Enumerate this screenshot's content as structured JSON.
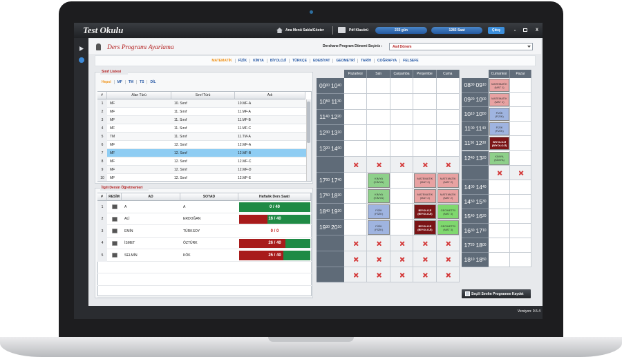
{
  "app": {
    "title": "Test Okulu",
    "toolbar": {
      "menu": "Ana Menü Sakla/Göster",
      "pdf": "Pdf Klasörü",
      "days": "233 gün",
      "hours": "1283 Saat",
      "exit": "Çıkış",
      "minimize": "-",
      "close": "X"
    }
  },
  "page": {
    "title": "Ders Programı Ayarlama",
    "term_label": "Dershane Program Dönemi Seçiniz :",
    "term_value": "Asıl Dönem"
  },
  "subjects": {
    "items": [
      "MATEMATİK",
      "FİZİK",
      "KİMYA",
      "BİYOLOJİ",
      "TÜRKÇE",
      "EDEBİYAT",
      "GEOMETRİ",
      "TARİH",
      "COĞRAFYA",
      "FELSEFE"
    ],
    "active": 0
  },
  "class_list": {
    "title": "Sınıf Listesi",
    "filters": [
      "Hepsi",
      "MF",
      "TM",
      "TS",
      "DİL"
    ],
    "active_filter": 0,
    "columns": [
      "#",
      "Alan Türü",
      "Sınıf Türü",
      "Adı"
    ],
    "rows": [
      [
        1,
        "MF",
        "10. Sınıf",
        "10.MF-A"
      ],
      [
        2,
        "MF",
        "11. Sınıf",
        "11.MF-A"
      ],
      [
        3,
        "MF",
        "11. Sınıf",
        "11.MF-B"
      ],
      [
        4,
        "MF",
        "11. Sınıf",
        "11.MF-C"
      ],
      [
        5,
        "TM",
        "11. Sınıf",
        "11.TM-A"
      ],
      [
        6,
        "MF",
        "12. Sınıf",
        "12.MF-A"
      ],
      [
        7,
        "MF",
        "12. Sınıf",
        "12.MF-B"
      ],
      [
        8,
        "MF",
        "12. Sınıf",
        "12.MF-C"
      ],
      [
        9,
        "MF",
        "12. Sınıf",
        "12.MF-D"
      ],
      [
        10,
        "MF",
        "12. Sınıf",
        "12.MF-E"
      ]
    ],
    "selected": 6
  },
  "teachers": {
    "title": "İlgili Dersin Öğretmenleri",
    "columns": [
      "#",
      "RESİM",
      "AD",
      "SOYAD",
      "Haftalık Ders Saati"
    ],
    "rows": [
      {
        "no": 1,
        "first": "A",
        "last": "A",
        "hours": 0,
        "max": 40,
        "label": "0 / 40"
      },
      {
        "no": 2,
        "first": "ALİ",
        "last": "ERDOĞAN",
        "hours": 16,
        "max": 40,
        "label": "16 / 40"
      },
      {
        "no": 3,
        "first": "EMİN",
        "last": "TÜRKSOY",
        "hours": 0,
        "max": 0,
        "label": "0 / 0"
      },
      {
        "no": 4,
        "first": "İSMET",
        "last": "ÖZTÜRK",
        "hours": 26,
        "max": 40,
        "label": "26 / 40"
      },
      {
        "no": 5,
        "first": "SELMİN",
        "last": "KÖK",
        "hours": 25,
        "max": 40,
        "label": "25 / 40"
      }
    ]
  },
  "weekday": {
    "days": [
      "Pazartesi",
      "Salı",
      "Çarşamba",
      "Perşembe",
      "Cuma"
    ],
    "slots": [
      {
        "time": [
          "09",
          "00",
          "10",
          "40"
        ],
        "blocked": false,
        "cells": [
          null,
          null,
          null,
          null,
          null
        ]
      },
      {
        "time": [
          "10",
          "50",
          "11",
          "30"
        ],
        "blocked": false,
        "cells": [
          null,
          null,
          null,
          null,
          null
        ]
      },
      {
        "time": [
          "11",
          "40",
          "12",
          "20"
        ],
        "blocked": false,
        "cells": [
          null,
          null,
          null,
          null,
          null
        ]
      },
      {
        "time": [
          "12",
          "30",
          "13",
          "10"
        ],
        "blocked": false,
        "cells": [
          null,
          null,
          null,
          null,
          null
        ]
      },
      {
        "time": [
          "13",
          "20",
          "14",
          "00"
        ],
        "blocked": false,
        "cells": [
          null,
          null,
          null,
          null,
          null
        ]
      },
      {
        "time": null,
        "blocked": true,
        "cells": [
          null,
          null,
          null,
          null,
          null
        ]
      },
      {
        "time": [
          "17",
          "00",
          "17",
          "40"
        ],
        "blocked": false,
        "cells": [
          null,
          {
            "subject": "KİMYA",
            "group": "(KİMYA)",
            "color": "#8ed08a"
          },
          null,
          {
            "subject": "MATEMATİK",
            "group": "(MAT 2)",
            "color": "#e8a2a2"
          },
          {
            "subject": "MATEMATİK",
            "group": "(MAT 2)",
            "color": "#e8a2a2"
          }
        ]
      },
      {
        "time": [
          "17",
          "50",
          "18",
          "30"
        ],
        "blocked": false,
        "cells": [
          null,
          {
            "subject": "KİMYA",
            "group": "(KİMYA)",
            "color": "#8ed08a"
          },
          null,
          {
            "subject": "MATEMATİK",
            "group": "(MAT 2)",
            "color": "#e8a2a2"
          },
          {
            "subject": "MATEMATİK",
            "group": "(MAT 2)",
            "color": "#e8a2a2"
          }
        ]
      },
      {
        "time": [
          "18",
          "40",
          "19",
          "20"
        ],
        "blocked": false,
        "cells": [
          null,
          {
            "subject": "FİZİK",
            "group": "(FİZİK)",
            "color": "#9fb4e0"
          },
          null,
          {
            "subject": "BİYOLOJİ",
            "group": "(BİYOLOJİ)",
            "color": "#7a1416"
          },
          {
            "subject": "GEOMETRİ",
            "group": "(MAT 3)",
            "color": "#7fd86e"
          }
        ]
      },
      {
        "time": [
          "19",
          "30",
          "20",
          "10"
        ],
        "blocked": false,
        "cells": [
          null,
          {
            "subject": "FİZİK",
            "group": "(FİZİK)",
            "color": "#9fb4e0"
          },
          null,
          {
            "subject": "BİYOLOJİ",
            "group": "(BİYOLOJİ)",
            "color": "#7a1416"
          },
          {
            "subject": "GEOMETRİ",
            "group": "(MAT 3)",
            "color": "#7fd86e"
          }
        ]
      },
      {
        "time": null,
        "blocked": true,
        "cells": [
          null,
          null,
          null,
          null,
          null
        ]
      },
      {
        "time": null,
        "blocked": true,
        "cells": [
          null,
          null,
          null,
          null,
          null
        ]
      },
      {
        "time": null,
        "blocked": true,
        "cells": [
          null,
          null,
          null,
          null,
          null
        ]
      }
    ]
  },
  "weekend": {
    "days": [
      "Cumartesi",
      "Pazar"
    ],
    "slots": [
      {
        "time": [
          "08",
          "30",
          "09",
          "10"
        ],
        "blocked": false,
        "cells": [
          {
            "subject": "MATEMATİK",
            "group": "(MAT 1)",
            "color": "#e8a2a2"
          },
          null
        ]
      },
      {
        "time": [
          "09",
          "20",
          "10",
          "00"
        ],
        "blocked": false,
        "cells": [
          {
            "subject": "MATEMATİK",
            "group": "(MAT 1)",
            "color": "#e8a2a2"
          },
          null
        ]
      },
      {
        "time": [
          "10",
          "10",
          "10",
          "50"
        ],
        "blocked": false,
        "cells": [
          {
            "subject": "FİZİK",
            "group": "(FİZİK)",
            "color": "#9fb4e0"
          },
          null
        ]
      },
      {
        "time": [
          "11",
          "00",
          "11",
          "40"
        ],
        "blocked": false,
        "cells": [
          {
            "subject": "FİZİK",
            "group": "(FİZİK)",
            "color": "#9fb4e0"
          },
          null
        ]
      },
      {
        "time": [
          "11",
          "50",
          "12",
          "30"
        ],
        "blocked": false,
        "cells": [
          {
            "subject": "BİYOLOJİ",
            "group": "(BİYOLOJİ)",
            "color": "#7a1416"
          },
          null
        ]
      },
      {
        "time": [
          "12",
          "40",
          "13",
          "20"
        ],
        "blocked": false,
        "cells": [
          {
            "subject": "KİMYA",
            "group": "(KİMYA)",
            "color": "#8ed08a"
          },
          null
        ]
      },
      {
        "time": null,
        "blocked": true,
        "cells": [
          null,
          null
        ]
      },
      {
        "time": [
          "14",
          "00",
          "14",
          "40"
        ],
        "blocked": false,
        "cells": [
          null,
          null
        ]
      },
      {
        "time": [
          "14",
          "50",
          "15",
          "30"
        ],
        "blocked": false,
        "cells": [
          null,
          null
        ]
      },
      {
        "time": [
          "15",
          "40",
          "16",
          "20"
        ],
        "blocked": false,
        "cells": [
          null,
          null
        ]
      },
      {
        "time": [
          "16",
          "30",
          "17",
          "10"
        ],
        "blocked": false,
        "cells": [
          null,
          null
        ]
      },
      {
        "time": [
          "17",
          "20",
          "18",
          "00"
        ],
        "blocked": false,
        "cells": [
          null,
          null
        ]
      },
      {
        "time": [
          "18",
          "10",
          "18",
          "50"
        ],
        "blocked": false,
        "cells": [
          null,
          null
        ]
      }
    ]
  },
  "footer": {
    "save": "Seçili Sınıfın Programını Kaydet",
    "version": "Versiyon: 0.5.4"
  }
}
